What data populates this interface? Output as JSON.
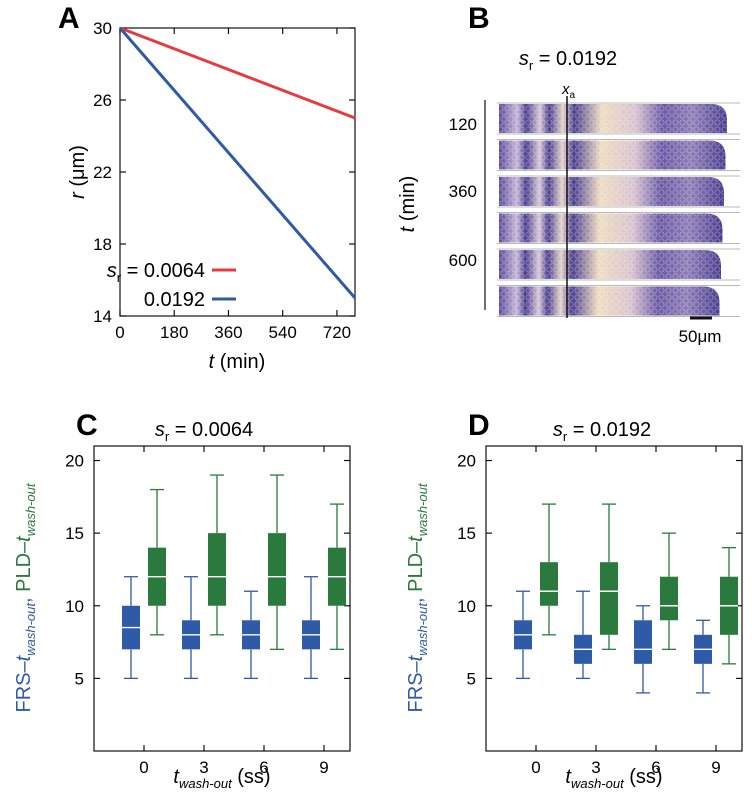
{
  "panels": {
    "A": "A",
    "B": "B",
    "C": "C",
    "D": "D"
  },
  "colors": {
    "red": "#e8393b",
    "blue": "#2f5aa8",
    "green": "#2b7a3d",
    "tissue_dark": "#4a3d8f",
    "tissue_light": "#f0ddb8"
  },
  "chart_data": [
    {
      "id": "A",
      "type": "line",
      "xlabel_main": "t",
      "xlabel_unit": " (min)",
      "ylabel_main": "r",
      "ylabel_unit": " (μm)",
      "xlim": [
        0,
        780
      ],
      "ylim": [
        14,
        30
      ],
      "xticks": [
        0,
        180,
        360,
        540,
        720
      ],
      "yticks": [
        14,
        18,
        22,
        26,
        30
      ],
      "legend": {
        "sym": "s",
        "sub": "r",
        "eq": " = "
      },
      "series": [
        {
          "name": "0.0064",
          "color": "#e8393b",
          "points": [
            [
              0,
              30
            ],
            [
              780,
              25.0
            ]
          ]
        },
        {
          "name": "0.0192",
          "color": "#2f5aa8",
          "points": [
            [
              0,
              30
            ],
            [
              780,
              15.0
            ]
          ]
        }
      ]
    },
    {
      "id": "B",
      "type": "image-strips",
      "title_sym": "s",
      "title_sub": "r",
      "title_val": " = 0.0192",
      "marker_sym": "x",
      "marker_sub": "a",
      "ylabel_main": "t",
      "ylabel_unit": " (min)",
      "time_labels": [
        "120",
        "360",
        "600"
      ],
      "scale_bar": "50μm",
      "strip_count": 6
    },
    {
      "id": "C",
      "type": "box",
      "title_sym": "s",
      "title_sub": "r",
      "title_val": " = 0.0064",
      "ylim": [
        0,
        21
      ],
      "yticks": [
        5,
        10,
        15,
        20
      ],
      "categories": [
        "0",
        "3",
        "6",
        "9"
      ],
      "xlabel": {
        "main": "t",
        "sub": "wash-out",
        "unit": " (ss)"
      },
      "ylabel": {
        "frs": "FRS–",
        "t": "t",
        "sub": "wash-out",
        "comma": ", ",
        "pld": "PLD–",
        "t2": "t",
        "sub2": "wash-out"
      },
      "series": [
        {
          "name": "FRS",
          "color": "#2f5aa8",
          "boxes": [
            {
              "whislo": 5,
              "q1": 7,
              "med": 8.5,
              "q3": 10,
              "whishi": 12
            },
            {
              "whislo": 5,
              "q1": 7,
              "med": 8,
              "q3": 9,
              "whishi": 12
            },
            {
              "whislo": 5,
              "q1": 7,
              "med": 8,
              "q3": 9,
              "whishi": 11
            },
            {
              "whislo": 5,
              "q1": 7,
              "med": 8,
              "q3": 9,
              "whishi": 12
            }
          ]
        },
        {
          "name": "PLD",
          "color": "#2b7a3d",
          "boxes": [
            {
              "whislo": 8,
              "q1": 10,
              "med": 12,
              "q3": 14,
              "whishi": 18
            },
            {
              "whislo": 8,
              "q1": 10,
              "med": 12,
              "q3": 15,
              "whishi": 19
            },
            {
              "whislo": 7,
              "q1": 10,
              "med": 12,
              "q3": 15,
              "whishi": 19
            },
            {
              "whislo": 7,
              "q1": 10,
              "med": 12,
              "q3": 14,
              "whishi": 17
            }
          ]
        }
      ]
    },
    {
      "id": "D",
      "type": "box",
      "title_sym": "s",
      "title_sub": "r",
      "title_val": " = 0.0192",
      "ylim": [
        0,
        21
      ],
      "yticks": [
        5,
        10,
        15,
        20
      ],
      "categories": [
        "0",
        "3",
        "6",
        "9"
      ],
      "xlabel": {
        "main": "t",
        "sub": "wash-out",
        "unit": " (ss)"
      },
      "ylabel": {
        "frs": "FRS–",
        "t": "t",
        "sub": "wash-out",
        "comma": ", ",
        "pld": "PLD–",
        "t2": "t",
        "sub2": "wash-out"
      },
      "series": [
        {
          "name": "FRS",
          "color": "#2f5aa8",
          "boxes": [
            {
              "whislo": 5,
              "q1": 7,
              "med": 8,
              "q3": 9,
              "whishi": 11
            },
            {
              "whislo": 5,
              "q1": 6,
              "med": 7,
              "q3": 8,
              "whishi": 11
            },
            {
              "whislo": 4,
              "q1": 6,
              "med": 7,
              "q3": 9,
              "whishi": 10
            },
            {
              "whislo": 4,
              "q1": 6,
              "med": 7,
              "q3": 8,
              "whishi": 9
            }
          ]
        },
        {
          "name": "PLD",
          "color": "#2b7a3d",
          "boxes": [
            {
              "whislo": 8,
              "q1": 10,
              "med": 11,
              "q3": 13,
              "whishi": 17
            },
            {
              "whislo": 7,
              "q1": 8,
              "med": 11,
              "q3": 13,
              "whishi": 17
            },
            {
              "whislo": 7,
              "q1": 9,
              "med": 10,
              "q3": 12,
              "whishi": 15
            },
            {
              "whislo": 6,
              "q1": 8,
              "med": 10,
              "q3": 12,
              "whishi": 14
            }
          ]
        }
      ]
    }
  ]
}
